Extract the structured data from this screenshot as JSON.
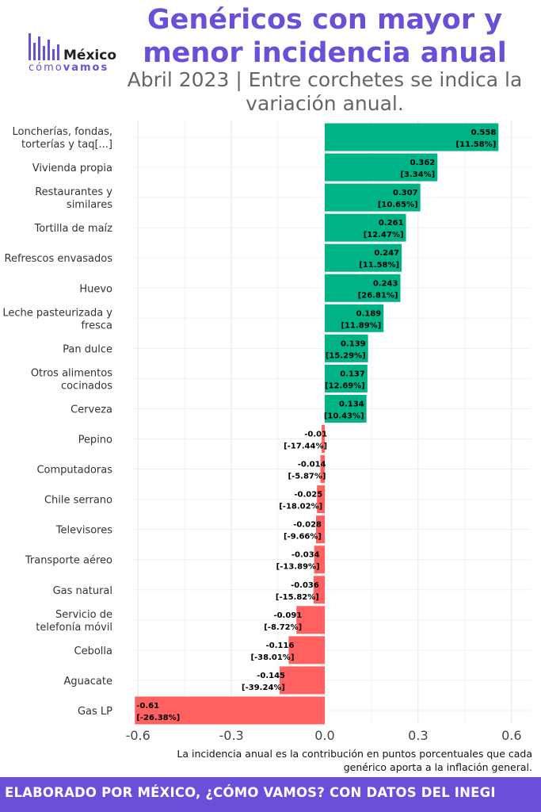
{
  "header": {
    "title": "Genéricos con mayor y menor incidencia anual",
    "subtitle": "Abril 2023 | Entre corchetes se indica la variación anual."
  },
  "logo": {
    "main": "México",
    "sub_light": "cómo",
    "sub_bold": "vamos"
  },
  "colors": {
    "positive": "#00b386",
    "negative": "#ff6161",
    "accent": "#6a4fd8"
  },
  "chart_data": {
    "type": "bar",
    "orientation": "horizontal",
    "title": "",
    "xlabel": "",
    "ylabel": "",
    "xlim": [
      -0.65,
      0.65
    ],
    "xticks": [
      -0.6,
      -0.3,
      0.0,
      0.3,
      0.6
    ],
    "xtick_labels": [
      "-0.6",
      "-0.3",
      "0.0",
      "0.3",
      "0.6"
    ],
    "grid": true,
    "categories": [
      "Loncherías, fondas, torterías y taq[...]",
      "Vivienda propia",
      "Restaurantes y similares",
      "Tortilla de maíz",
      "Refrescos envasados",
      "Huevo",
      "Leche pasteurizada y fresca",
      "Pan dulce",
      "Otros alimentos cocinados",
      "Cerveza",
      "Pepino",
      "Computadoras",
      "Chile serrano",
      "Televisores",
      "Transporte aéreo",
      "Gas natural",
      "Servicio de telefonía móvil",
      "Cebolla",
      "Aguacate",
      "Gas LP"
    ],
    "category_lines": [
      [
        "Loncherías, fondas,",
        "torterías y taq[...]"
      ],
      [
        "Vivienda propia"
      ],
      [
        "Restaurantes y",
        "similares"
      ],
      [
        "Tortilla de maíz"
      ],
      [
        "Refrescos envasados"
      ],
      [
        "Huevo"
      ],
      [
        "Leche pasteurizada y",
        "fresca"
      ],
      [
        "Pan dulce"
      ],
      [
        "Otros alimentos",
        "cocinados"
      ],
      [
        "Cerveza"
      ],
      [
        "Pepino"
      ],
      [
        "Computadoras"
      ],
      [
        "Chile serrano"
      ],
      [
        "Televisores"
      ],
      [
        "Transporte aéreo"
      ],
      [
        "Gas natural"
      ],
      [
        "Servicio de",
        "telefonía móvil"
      ],
      [
        "Cebolla"
      ],
      [
        "Aguacate"
      ],
      [
        "Gas LP"
      ]
    ],
    "values": [
      0.558,
      0.362,
      0.307,
      0.261,
      0.247,
      0.243,
      0.189,
      0.139,
      0.137,
      0.134,
      -0.01,
      -0.014,
      -0.025,
      -0.028,
      -0.034,
      -0.036,
      -0.091,
      -0.116,
      -0.145,
      -0.61
    ],
    "value_labels": [
      "0.558",
      "0.362",
      "0.307",
      "0.261",
      "0.247",
      "0.243",
      "0.189",
      "0.139",
      "0.137",
      "0.134",
      "-0.01",
      "-0.014",
      "-0.025",
      "-0.028",
      "-0.034",
      "-0.036",
      "-0.091",
      "-0.116",
      "-0.145",
      "-0.61"
    ],
    "annual_variation": [
      "[11.58%]",
      "[3.34%]",
      "[10.65%]",
      "[12.47%]",
      "[11.58%]",
      "[26.81%]",
      "[11.89%]",
      "[15.29%]",
      "[12.69%]",
      "[10.43%]",
      "[-17.44%]",
      "[-5.87%]",
      "[-18.02%]",
      "[-9.66%]",
      "[-13.89%]",
      "[-15.82%]",
      "[-8.72%]",
      "[-38.01%]",
      "[-39.24%]",
      "[-26.38%]"
    ]
  },
  "note": "La incidencia anual es la contribución en puntos porcentuales que cada genérico aporta a la inflación general.",
  "footer": "ELABORADO POR MÉXICO, ¿CÓMO VAMOS? CON DATOS DEL INEGI"
}
